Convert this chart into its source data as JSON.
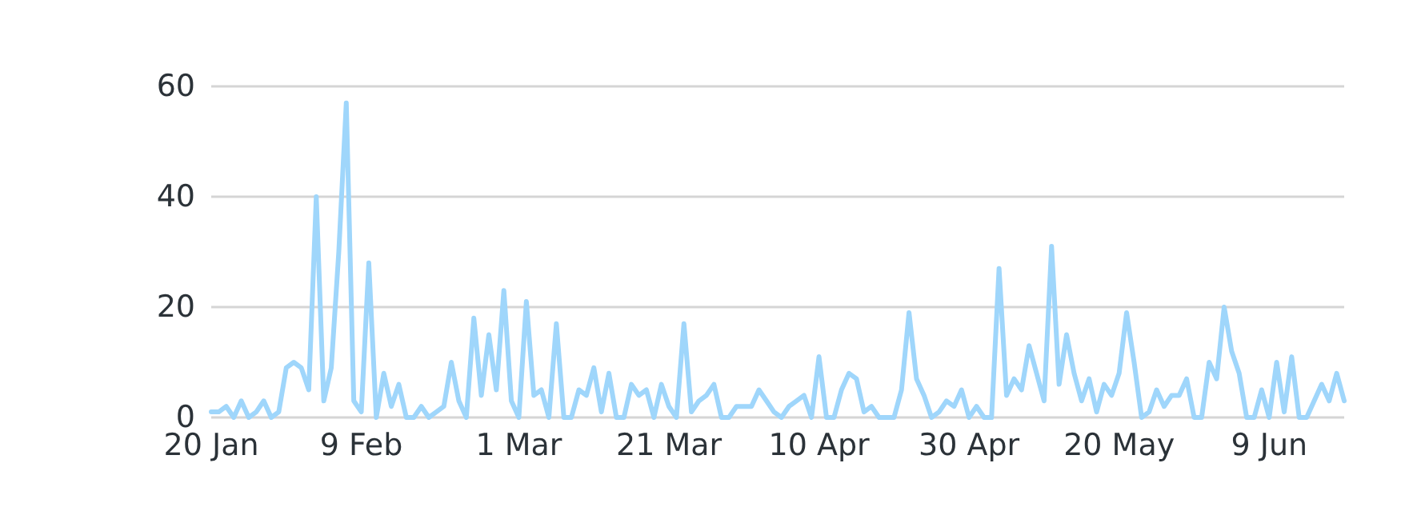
{
  "chart_data": {
    "type": "line",
    "x": [
      "--01-20",
      "--01-21",
      "--01-22",
      "--01-23",
      "--01-24",
      "--01-25",
      "--01-26",
      "--01-27",
      "--01-28",
      "--01-29",
      "--01-30",
      "--01-31",
      "--02-01",
      "--02-02",
      "--02-03",
      "--02-04",
      "--02-05",
      "--02-06",
      "--02-07",
      "--02-08",
      "--02-09",
      "--02-10",
      "--02-11",
      "--02-12",
      "--02-13",
      "--02-14",
      "--02-15",
      "--02-16",
      "--02-17",
      "--02-18",
      "--02-19",
      "--02-20",
      "--02-21",
      "--02-22",
      "--02-23",
      "--02-24",
      "--02-25",
      "--02-26",
      "--02-27",
      "--02-28",
      "--02-29",
      "--03-01",
      "--03-02",
      "--03-03",
      "--03-04",
      "--03-05",
      "--03-06",
      "--03-07",
      "--03-08",
      "--03-09",
      "--03-10",
      "--03-11",
      "--03-12",
      "--03-13",
      "--03-14",
      "--03-15",
      "--03-16",
      "--03-17",
      "--03-18",
      "--03-19",
      "--03-20",
      "--03-21",
      "--03-22",
      "--03-23",
      "--03-24",
      "--03-25",
      "--03-26",
      "--03-27",
      "--03-28",
      "--03-29",
      "--03-30",
      "--03-31",
      "--04-01",
      "--04-02",
      "--04-03",
      "--04-04",
      "--04-05",
      "--04-06",
      "--04-07",
      "--04-08",
      "--04-09",
      "--04-10",
      "--04-11",
      "--04-12",
      "--04-13",
      "--04-14",
      "--04-15",
      "--04-16",
      "--04-17",
      "--04-18",
      "--04-19",
      "--04-20",
      "--04-21",
      "--04-22",
      "--04-23",
      "--04-24",
      "--04-25",
      "--04-26",
      "--04-27",
      "--04-28",
      "--04-29",
      "--04-30",
      "--05-01",
      "--05-02",
      "--05-03",
      "--05-04",
      "--05-05",
      "--05-06",
      "--05-07",
      "--05-08",
      "--05-09",
      "--05-10",
      "--05-11",
      "--05-12",
      "--05-13",
      "--05-14",
      "--05-15",
      "--05-16",
      "--05-17",
      "--05-18",
      "--05-19",
      "--05-20",
      "--05-21",
      "--05-22",
      "--05-23",
      "--05-24",
      "--05-25",
      "--05-26",
      "--05-27",
      "--05-28",
      "--05-29",
      "--05-30",
      "--05-31",
      "--06-01",
      "--06-02",
      "--06-03",
      "--06-04",
      "--06-05",
      "--06-06",
      "--06-07",
      "--06-08",
      "--06-09",
      "--06-10",
      "--06-11",
      "--06-12",
      "--06-13",
      "--06-14",
      "--06-15",
      "--06-16",
      "--06-17",
      "--06-18",
      "--06-19"
    ],
    "series": [
      {
        "color": "#9fd6fb",
        "values": [
          1,
          1,
          2,
          0,
          3,
          0,
          1,
          3,
          0,
          1,
          9,
          10,
          9,
          5,
          40,
          3,
          9,
          30,
          57,
          3,
          1,
          28,
          0,
          8,
          2,
          6,
          0,
          0,
          2,
          0,
          1,
          2,
          10,
          3,
          0,
          18,
          4,
          15,
          5,
          23,
          3,
          0,
          21,
          4,
          5,
          0,
          17,
          0,
          0,
          5,
          4,
          9,
          1,
          8,
          0,
          0,
          6,
          4,
          5,
          0,
          6,
          2,
          0,
          17,
          1,
          3,
          4,
          6,
          0,
          0,
          2,
          2,
          2,
          5,
          3,
          1,
          0,
          2,
          3,
          4,
          0,
          11,
          0,
          0,
          5,
          8,
          7,
          1,
          2,
          0,
          0,
          0,
          5,
          19,
          7,
          4,
          0,
          1,
          3,
          2,
          5,
          0,
          2,
          0,
          0,
          27,
          4,
          7,
          5,
          13,
          8,
          3,
          31,
          6,
          15,
          8,
          3,
          7,
          1,
          6,
          4,
          8,
          19,
          10,
          0,
          1,
          5,
          2,
          4,
          4,
          7,
          0,
          0,
          10,
          7,
          20,
          12,
          8,
          0,
          0,
          5,
          0,
          10,
          1,
          11,
          0,
          0,
          3,
          6,
          3,
          8,
          3
        ]
      }
    ],
    "ylim": [
      0,
      60
    ],
    "yticks": [
      0,
      20,
      40,
      60
    ],
    "xticks": [
      {
        "value": "--01-20",
        "label": "20 Jan"
      },
      {
        "value": "--02-09",
        "label": "9 Feb"
      },
      {
        "value": "--03-01",
        "label": "1 Mar"
      },
      {
        "value": "--03-21",
        "label": "21 Mar"
      },
      {
        "value": "--04-10",
        "label": "10 Apr"
      },
      {
        "value": "--04-30",
        "label": "30 Apr"
      },
      {
        "value": "--05-20",
        "label": "20 May"
      },
      {
        "value": "--06-09",
        "label": "9 Jun"
      }
    ],
    "xlim": [
      "--01-20",
      "--06-19"
    ],
    "grid": "y",
    "marker": "none",
    "line_style": "solid"
  }
}
